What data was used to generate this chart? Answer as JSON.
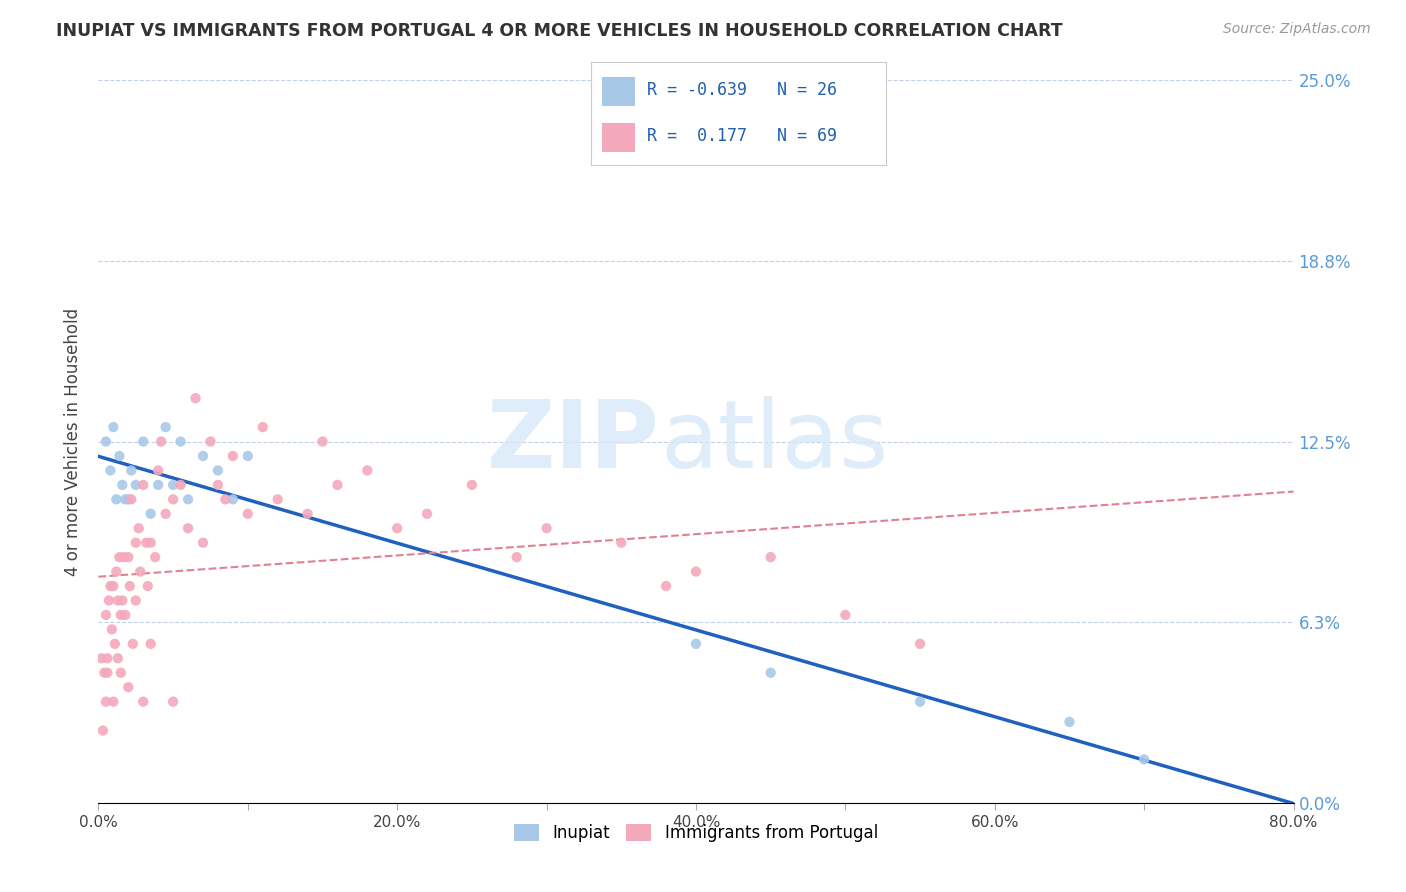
{
  "title": "INUPIAT VS IMMIGRANTS FROM PORTUGAL 4 OR MORE VEHICLES IN HOUSEHOLD CORRELATION CHART",
  "source": "Source: ZipAtlas.com",
  "ylabel": "4 or more Vehicles in Household",
  "legend_labels": [
    "Inupiat",
    "Immigrants from Portugal"
  ],
  "r_inupiat": -0.639,
  "n_inupiat": 26,
  "r_portugal": 0.177,
  "n_portugal": 69,
  "color_inupiat": "#a8c8e8",
  "color_portugal": "#f4a8bc",
  "line_color_inupiat": "#2060c0",
  "line_color_portugal": "#e08090",
  "xlim": [
    0.0,
    80.0
  ],
  "ylim": [
    0.0,
    25.0
  ],
  "yticks": [
    0.0,
    6.25,
    12.5,
    18.75,
    25.0
  ],
  "ytick_labels": [
    "0.0%",
    "6.3%",
    "12.5%",
    "18.8%",
    "25.0%"
  ],
  "xticks": [
    0.0,
    10.0,
    20.0,
    30.0,
    40.0,
    50.0,
    60.0,
    70.0,
    80.0
  ],
  "xtick_labels": [
    "0.0%",
    "",
    "20.0%",
    "",
    "40.0%",
    "",
    "60.0%",
    "",
    "80.0%"
  ],
  "watermark_zip": "ZIP",
  "watermark_atlas": "atlas",
  "inupiat_x": [
    0.5,
    0.8,
    1.0,
    1.2,
    1.4,
    1.6,
    1.8,
    2.0,
    2.2,
    2.5,
    3.0,
    3.5,
    4.0,
    4.5,
    5.0,
    5.5,
    6.0,
    7.0,
    8.0,
    9.0,
    10.0,
    40.0,
    45.0,
    55.0,
    65.0,
    70.0
  ],
  "inupiat_y": [
    12.5,
    11.5,
    13.0,
    10.5,
    12.0,
    11.0,
    10.5,
    10.5,
    11.5,
    11.0,
    12.5,
    10.0,
    11.0,
    13.0,
    11.0,
    12.5,
    10.5,
    12.0,
    11.5,
    10.5,
    12.0,
    5.5,
    4.5,
    3.5,
    2.8,
    1.5
  ],
  "portugal_x": [
    0.2,
    0.3,
    0.4,
    0.5,
    0.5,
    0.6,
    0.6,
    0.7,
    0.8,
    0.9,
    1.0,
    1.0,
    1.1,
    1.2,
    1.3,
    1.3,
    1.4,
    1.5,
    1.5,
    1.6,
    1.7,
    1.8,
    2.0,
    2.0,
    2.1,
    2.2,
    2.3,
    2.5,
    2.5,
    2.7,
    2.8,
    3.0,
    3.0,
    3.2,
    3.3,
    3.5,
    3.5,
    3.8,
    4.0,
    4.2,
    4.5,
    5.0,
    5.0,
    5.5,
    6.0,
    6.5,
    7.0,
    7.5,
    8.0,
    8.5,
    9.0,
    10.0,
    11.0,
    12.0,
    14.0,
    15.0,
    16.0,
    18.0,
    20.0,
    22.0,
    25.0,
    28.0,
    30.0,
    35.0,
    38.0,
    40.0,
    45.0,
    50.0,
    55.0
  ],
  "portugal_y": [
    5.0,
    2.5,
    4.5,
    6.5,
    3.5,
    5.0,
    4.5,
    7.0,
    7.5,
    6.0,
    3.5,
    7.5,
    5.5,
    8.0,
    5.0,
    7.0,
    8.5,
    6.5,
    4.5,
    7.0,
    8.5,
    6.5,
    4.0,
    8.5,
    7.5,
    10.5,
    5.5,
    7.0,
    9.0,
    9.5,
    8.0,
    3.5,
    11.0,
    9.0,
    7.5,
    5.5,
    9.0,
    8.5,
    11.5,
    12.5,
    10.0,
    10.5,
    3.5,
    11.0,
    9.5,
    14.0,
    9.0,
    12.5,
    11.0,
    10.5,
    12.0,
    10.0,
    13.0,
    10.5,
    10.0,
    12.5,
    11.0,
    11.5,
    9.5,
    10.0,
    11.0,
    8.5,
    9.5,
    9.0,
    7.5,
    8.0,
    8.5,
    6.5,
    5.5
  ]
}
